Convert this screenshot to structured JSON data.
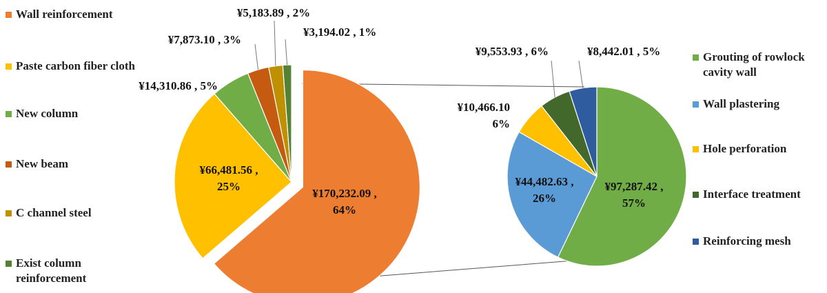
{
  "chart_data": [
    {
      "type": "pie",
      "title": "",
      "slices": [
        {
          "label": "Wall reinforcement",
          "value": 170232.09,
          "value_label": "¥170,232.09 ,",
          "percent_label": "64%",
          "color": "#ED7D31"
        },
        {
          "label": "Paste carbon fiber cloth",
          "value": 66481.56,
          "value_label": "¥66,481.56 ,",
          "percent_label": "25%",
          "color": "#FFC000"
        },
        {
          "label": "New column",
          "value": 14310.86,
          "value_label": "¥14,310.86 , 5%",
          "percent_label": "",
          "color": "#70AD47"
        },
        {
          "label": "New beam",
          "value": 7873.1,
          "value_label": "¥7,873.10 , 3%",
          "percent_label": "",
          "color": "#C55A11"
        },
        {
          "label": "C channel steel",
          "value": 5183.89,
          "value_label": "¥5,183.89 , 2%",
          "percent_label": "",
          "color": "#BF9000"
        },
        {
          "label": "Exist column reinforcement",
          "value": 3194.02,
          "value_label": "¥3,194.02 , 1%",
          "percent_label": "",
          "color": "#548235"
        }
      ]
    },
    {
      "type": "pie",
      "title": "",
      "slices": [
        {
          "label": "Grouting of rowlock cavity wall",
          "value": 97287.42,
          "value_label": "¥97,287.42 ,",
          "percent_label": "57%",
          "color": "#70AD47"
        },
        {
          "label": "Wall plastering",
          "value": 44482.63,
          "value_label": "¥44,482.63 ,",
          "percent_label": "26%",
          "color": "#5B9BD5"
        },
        {
          "label": "Hole perforation",
          "value": 10466.1,
          "value_label": "¥10,466.10",
          "percent_label": "6%",
          "color": "#FFC000"
        },
        {
          "label": "Interface treatment",
          "value": 9553.93,
          "value_label": "¥9,553.93 , 6%",
          "percent_label": "",
          "color": "#43682B"
        },
        {
          "label": "Reinforcing mesh",
          "value": 8442.01,
          "value_label": "¥8,442.01 , 5%",
          "percent_label": "",
          "color": "#2E5C9E"
        }
      ]
    }
  ],
  "legend_left": [
    {
      "label": "Wall reinforcement",
      "color": "#ED7D31"
    },
    {
      "label": "Paste carbon fiber cloth",
      "color": "#FFC000"
    },
    {
      "label": "New column",
      "color": "#70AD47"
    },
    {
      "label": "New beam",
      "color": "#C55A11"
    },
    {
      "label": "C channel steel",
      "color": "#BF9000"
    },
    {
      "label": "Exist column reinforcement",
      "color": "#548235"
    }
  ],
  "legend_right": [
    {
      "label": "Grouting of rowlock cavity wall",
      "color": "#70AD47"
    },
    {
      "label": "Wall plastering",
      "color": "#5B9BD5"
    },
    {
      "label": "Hole perforation",
      "color": "#FFC000"
    },
    {
      "label": "Interface treatment",
      "color": "#43682B"
    },
    {
      "label": "Reinforcing mesh",
      "color": "#2E5C9E"
    }
  ]
}
